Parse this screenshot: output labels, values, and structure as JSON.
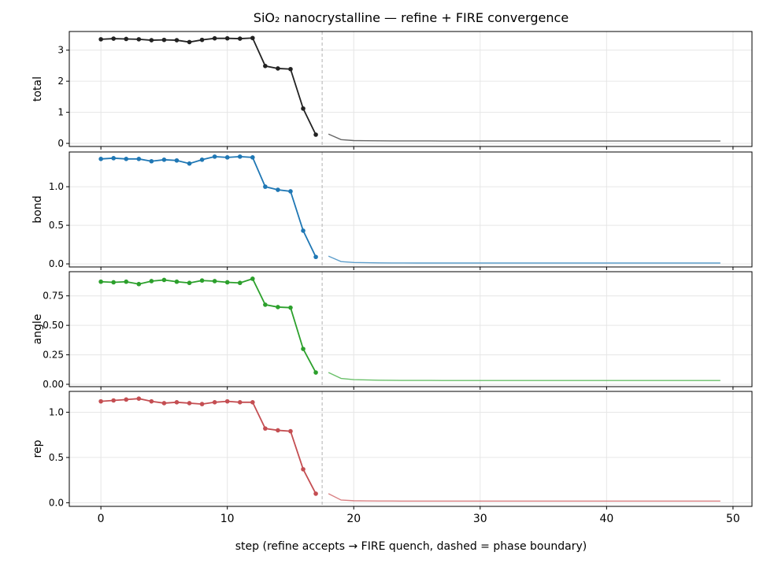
{
  "chart_data": {
    "type": "line",
    "title": "SiO₂ nanocrystalline — refine + FIRE convergence",
    "xlabel": "step  (refine accepts → FIRE quench, dashed = phase boundary)",
    "xlim": [
      -2.5,
      51.5
    ],
    "x_ticks": [
      "0",
      "10",
      "20",
      "30",
      "40",
      "50"
    ],
    "phase_boundary_x": 17.5,
    "grid": true,
    "refine_steps": [
      0,
      1,
      2,
      3,
      4,
      5,
      6,
      7,
      8,
      9,
      10,
      11,
      12,
      13,
      14,
      15,
      16,
      17
    ],
    "fire_steps": [
      18,
      19,
      20,
      21,
      22,
      23,
      24,
      25,
      26,
      27,
      28,
      29,
      30,
      31,
      32,
      33,
      34,
      35,
      36,
      37,
      38,
      39,
      40,
      41,
      42,
      43,
      44,
      45,
      46,
      47,
      48,
      49
    ],
    "panels": [
      {
        "ylabel": "total",
        "color": "#222222",
        "fire_color": "#666666",
        "ylim": [
          -0.1,
          3.6
        ],
        "y_ticks": [
          "0",
          "1",
          "2",
          "3"
        ],
        "refine": [
          3.35,
          3.37,
          3.36,
          3.35,
          3.32,
          3.33,
          3.32,
          3.26,
          3.33,
          3.38,
          3.38,
          3.37,
          3.39,
          2.49,
          2.41,
          2.39,
          1.12,
          0.28
        ],
        "fire": [
          0.3,
          0.12,
          0.09,
          0.085,
          0.082,
          0.08,
          0.079,
          0.078,
          0.078,
          0.077,
          0.077,
          0.077,
          0.076,
          0.076,
          0.076,
          0.076,
          0.076,
          0.076,
          0.076,
          0.076,
          0.076,
          0.076,
          0.076,
          0.076,
          0.076,
          0.076,
          0.076,
          0.076,
          0.076,
          0.076,
          0.076,
          0.076
        ]
      },
      {
        "ylabel": "bond",
        "color": "#1f77b4",
        "fire_color": "#5d9ecb",
        "ylim": [
          -0.04,
          1.45
        ],
        "y_ticks": [
          "0.0",
          "0.5",
          "1.0"
        ],
        "refine": [
          1.36,
          1.37,
          1.36,
          1.36,
          1.33,
          1.35,
          1.34,
          1.3,
          1.35,
          1.39,
          1.38,
          1.39,
          1.38,
          1.0,
          0.96,
          0.94,
          0.43,
          0.09
        ],
        "fire": [
          0.1,
          0.03,
          0.018,
          0.015,
          0.013,
          0.012,
          0.012,
          0.011,
          0.011,
          0.011,
          0.011,
          0.011,
          0.011,
          0.011,
          0.011,
          0.011,
          0.011,
          0.011,
          0.011,
          0.011,
          0.011,
          0.011,
          0.011,
          0.011,
          0.011,
          0.011,
          0.011,
          0.011,
          0.011,
          0.011,
          0.011,
          0.011
        ]
      },
      {
        "ylabel": "angle",
        "color": "#2ca02c",
        "fire_color": "#6ac06a",
        "ylim": [
          -0.02,
          0.955
        ],
        "y_ticks": [
          "0.00",
          "0.25",
          "0.50",
          "0.75"
        ],
        "refine": [
          0.87,
          0.865,
          0.87,
          0.85,
          0.875,
          0.885,
          0.87,
          0.86,
          0.88,
          0.875,
          0.865,
          0.86,
          0.895,
          0.675,
          0.655,
          0.65,
          0.3,
          0.1
        ],
        "fire": [
          0.1,
          0.05,
          0.04,
          0.037,
          0.035,
          0.034,
          0.033,
          0.033,
          0.033,
          0.032,
          0.032,
          0.032,
          0.032,
          0.032,
          0.032,
          0.032,
          0.032,
          0.032,
          0.032,
          0.032,
          0.032,
          0.032,
          0.032,
          0.032,
          0.032,
          0.032,
          0.032,
          0.032,
          0.032,
          0.032,
          0.032,
          0.032
        ]
      },
      {
        "ylabel": "rep",
        "color": "#c44e52",
        "fire_color": "#d98083",
        "ylim": [
          -0.04,
          1.23
        ],
        "y_ticks": [
          "0.0",
          "0.5",
          "1.0"
        ],
        "refine": [
          1.12,
          1.13,
          1.14,
          1.15,
          1.12,
          1.1,
          1.11,
          1.1,
          1.09,
          1.11,
          1.12,
          1.11,
          1.11,
          0.82,
          0.8,
          0.79,
          0.37,
          0.1
        ],
        "fire": [
          0.1,
          0.03,
          0.022,
          0.02,
          0.019,
          0.019,
          0.018,
          0.018,
          0.018,
          0.018,
          0.018,
          0.018,
          0.018,
          0.018,
          0.018,
          0.018,
          0.018,
          0.018,
          0.018,
          0.018,
          0.018,
          0.018,
          0.018,
          0.018,
          0.018,
          0.018,
          0.018,
          0.018,
          0.018,
          0.018,
          0.018,
          0.018
        ]
      }
    ]
  }
}
